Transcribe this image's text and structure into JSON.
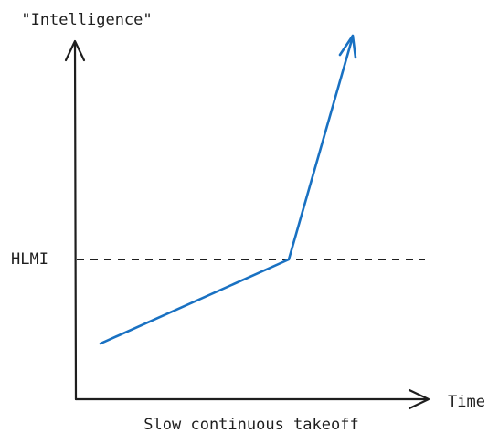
{
  "y_axis_label": "\"Intelligence\"",
  "x_axis_label": "Time",
  "threshold_label": "HLMI",
  "caption": "Slow continuous takeoff"
}
